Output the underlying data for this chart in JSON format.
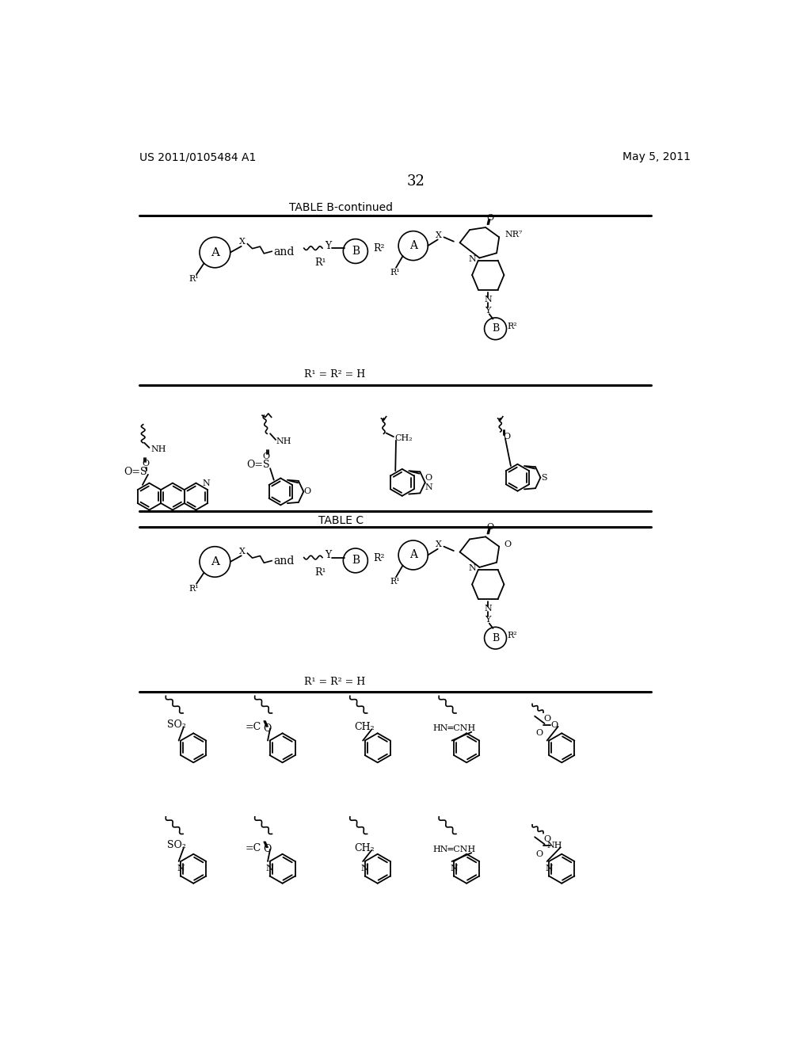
{
  "background_color": "#ffffff",
  "header_left": "US 2011/0105484 A1",
  "header_right": "May 5, 2011",
  "page_number": "32",
  "table_b_continued_title": "TABLE B-continued",
  "table_c_title": "TABLE C",
  "r1r2h": "R¹ = R² = H"
}
